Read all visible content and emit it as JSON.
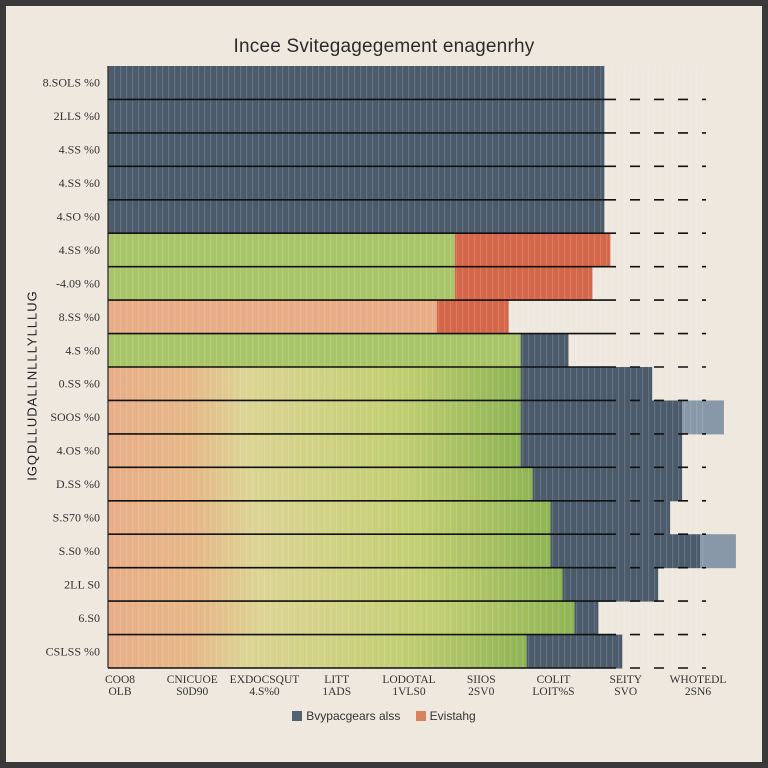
{
  "chart_data": {
    "type": "bar",
    "orientation": "horizontal",
    "title": "Incee Svitegagegement enagenrhy",
    "ylabel": "IGQDLLUDALLNLLLYLLLUG",
    "xlabel": "",
    "categories": [
      "8.SOLS %0",
      "2LLS %0",
      "4.SS %0",
      "4.SS %0",
      "4.SO %0",
      "4.SS %0",
      "-4.09 %0",
      "8.SS %0",
      "4.S %0",
      "0.SS %0",
      "SOOS %0",
      "4.OS %0",
      "D.SS %0",
      "S.S70 %0",
      "S.S0 %0",
      "2LL S0",
      "6.S0",
      "CSLSS %0"
    ],
    "x_ticks": [
      "OLB\nCOO8",
      "S0D90\nCNICUOE",
      "4.S%0\nEXDOCSQUT",
      "1ADS\nLITT",
      "1VLS0\nLODOTAL",
      "2SV0\nSIIOS",
      "LOIT%S\nCOLIT",
      "SVO\nSEITY",
      "2SN6\nWHOTEDL"
    ],
    "xlim": [
      0,
      100
    ],
    "legend": {
      "position": "bottom",
      "entries": [
        {
          "name": "Bvypacgears alss",
          "color": "#4f6470"
        },
        {
          "name": "Evistahg",
          "color": "#d9835e"
        }
      ]
    },
    "series": [
      {
        "name": "peach",
        "color": "#e8ad86",
        "values": [
          0,
          0,
          0,
          0,
          0,
          0,
          0,
          55,
          0,
          0,
          0,
          0,
          0,
          0,
          0,
          0,
          0,
          0
        ]
      },
      {
        "name": "lime",
        "color": "#a9c56a",
        "values": [
          0,
          0,
          0,
          0,
          0,
          58,
          58,
          0,
          69,
          0,
          0,
          0,
          0,
          0,
          0,
          0,
          0,
          0
        ]
      },
      {
        "name": "gradient-green",
        "color": "#c8c86e",
        "values": [
          0,
          0,
          0,
          0,
          0,
          0,
          0,
          0,
          0,
          69,
          69,
          69,
          71,
          74,
          74,
          76,
          78,
          70
        ]
      },
      {
        "name": "red",
        "color": "#d4664a",
        "values": [
          0,
          0,
          0,
          0,
          0,
          26,
          23,
          12,
          0,
          0,
          0,
          0,
          0,
          0,
          0,
          0,
          0,
          0
        ]
      },
      {
        "name": "slate",
        "color": "#4c5b6b",
        "values": [
          83,
          83,
          83,
          83,
          83,
          0,
          0,
          0,
          8,
          22,
          27,
          27,
          25,
          20,
          25,
          16,
          4,
          16
        ]
      },
      {
        "name": "light-slate",
        "color": "#8898a8",
        "values": [
          0,
          0,
          0,
          0,
          0,
          0,
          0,
          0,
          0,
          0,
          7,
          0,
          0,
          0,
          6,
          0,
          0,
          0
        ]
      }
    ],
    "grid": true
  }
}
